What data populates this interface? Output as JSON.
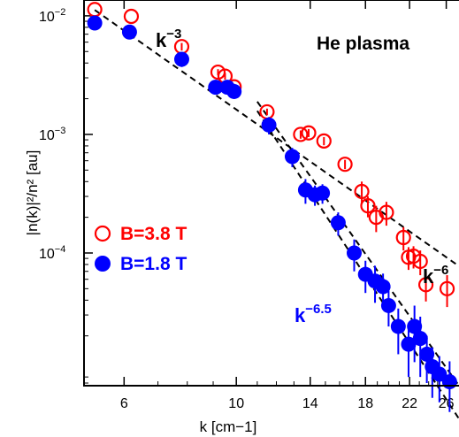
{
  "chart_data": {
    "type": "scatter",
    "title": "He plasma",
    "xlabel": "k  [cm−1]",
    "ylabel": "|n(k)|²/n²  [au]",
    "xscale": "log",
    "yscale": "log",
    "xlim": [
      5.0,
      28.0
    ],
    "ylim": [
      7.6e-06,
      0.0136
    ],
    "xticks": [
      6,
      10,
      14,
      18,
      22,
      26
    ],
    "xtick_labels": [
      "6",
      "10",
      "14",
      "18",
      "22",
      "26"
    ],
    "yticks": [
      0.0001,
      0.001,
      0.01
    ],
    "ytick_labels": [
      {
        "base": "10",
        "exp": "−4"
      },
      {
        "base": "10",
        "exp": "−3"
      },
      {
        "base": "10",
        "exp": "−2"
      }
    ],
    "grid": false,
    "legend_position": "middle-left",
    "series": [
      {
        "name": "B=3.8 T",
        "color": "#ff0000",
        "marker": "open-circle",
        "x": [
          5.25,
          6.2,
          7.8,
          9.2,
          9.5,
          9.9,
          11.5,
          13.4,
          13.9,
          14.9,
          16.4,
          17.7,
          18.2,
          18.9,
          19.8,
          21.4,
          21.9,
          22.4,
          23.1,
          23.7,
          26.1
        ],
        "y": [
          0.0113,
          0.0099,
          0.0055,
          0.00335,
          0.0031,
          0.00252,
          0.00155,
          0.001,
          0.00103,
          0.00088,
          0.00056,
          0.00033,
          0.00025,
          0.0002,
          0.00022,
          0.000135,
          9.2e-05,
          9.4e-05,
          8.5e-05,
          5.4e-05,
          5e-05
        ],
        "yerr": [
          0,
          0,
          0.0004,
          0.0002,
          0.0002,
          0.00015,
          0.0001,
          8e-05,
          8e-05,
          7e-05,
          5e-05,
          7e-05,
          5e-05,
          5e-05,
          5e-05,
          3e-05,
          2e-05,
          2e-05,
          2e-05,
          1.5e-05,
          1.5e-05
        ]
      },
      {
        "name": "B=1.8 T",
        "color": "#0000ff",
        "marker": "filled-circle",
        "x": [
          5.25,
          6.15,
          7.8,
          9.1,
          9.6,
          9.9,
          11.6,
          12.9,
          13.7,
          14.3,
          14.8,
          15.9,
          17.1,
          18.0,
          18.8,
          19.5,
          20.0,
          20.9,
          21.9,
          22.5,
          23.1,
          23.8,
          24.4,
          25.2,
          26.4
        ],
        "y": [
          0.0087,
          0.0073,
          0.0043,
          0.0025,
          0.0025,
          0.0023,
          0.0012,
          0.00065,
          0.00034,
          0.00031,
          0.00032,
          0.00018,
          0.0001,
          6.6e-05,
          5.8e-05,
          5.2e-05,
          3.6e-05,
          2.4e-05,
          1.7e-05,
          2.4e-05,
          1.9e-05,
          1.4e-05,
          1.1e-05,
          9.5e-06,
          8.2e-06
        ],
        "yerr": [
          0.0008,
          0.0008,
          0.0006,
          0.0003,
          0.0003,
          0.0003,
          0.0002,
          0.00012,
          8e-05,
          6e-05,
          6e-05,
          4e-05,
          3e-05,
          2e-05,
          2e-05,
          1.5e-05,
          1.2e-05,
          1e-05,
          8e-06,
          1.2e-05,
          1e-05,
          6e-06,
          5e-06,
          4e-06,
          4e-06
        ]
      }
    ],
    "fit_lines": [
      {
        "label": {
          "base": "k",
          "exp": "−3"
        },
        "color": "#000000",
        "x": [
          5.25,
          28.0
        ],
        "y": [
          0.0112,
          7.38e-05
        ]
      },
      {
        "label": {
          "base": "k",
          "exp": "−6"
        },
        "color": "#000000",
        "x": [
          11.0,
          28.0
        ],
        "y": [
          0.00189,
          6.9e-06
        ]
      },
      {
        "label": {
          "base": "k",
          "exp": "−6.5"
        },
        "color": "#000000",
        "x": [
          11.0,
          28.0
        ],
        "y": [
          0.00158,
          3.6e-06
        ]
      }
    ],
    "annotations": [
      {
        "id": "k3",
        "base": "k",
        "exp": "−3",
        "color": "#000000"
      },
      {
        "id": "k6",
        "base": "k",
        "exp": "−6",
        "color": "#000000"
      },
      {
        "id": "k65",
        "base": "k",
        "exp": "−6.5",
        "color": "#0000ff"
      }
    ]
  }
}
